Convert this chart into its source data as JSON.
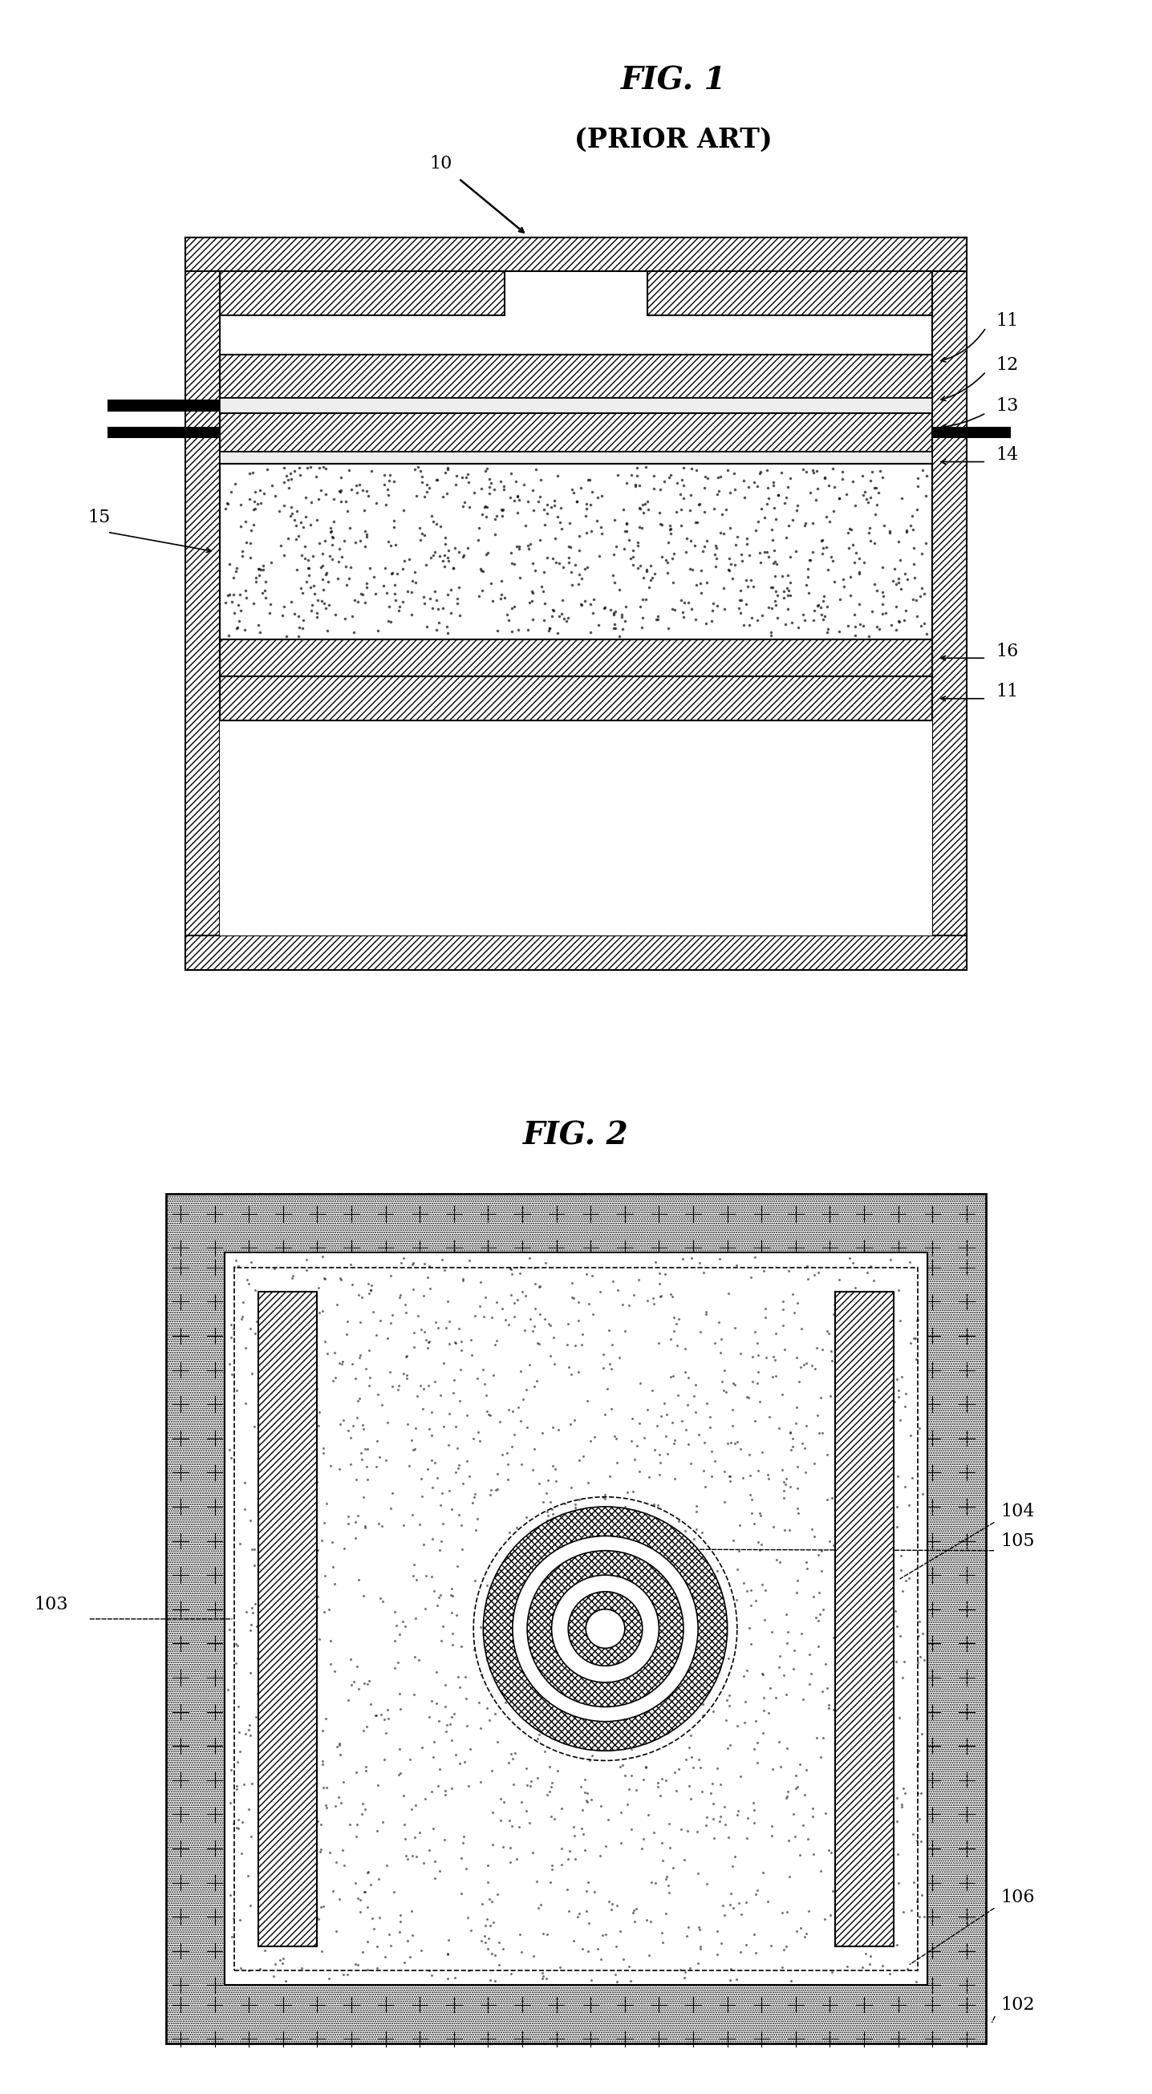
{
  "fig1_title": "FIG. 1",
  "fig1_subtitle": "(PRIOR ART)",
  "fig2_title": "FIG. 2",
  "bg_color": "#ffffff",
  "label_10": "10",
  "label_11": "11",
  "label_12": "12",
  "label_13": "13",
  "label_14": "14",
  "label_15": "15",
  "label_16": "16",
  "label_102": "102",
  "label_103": "103",
  "label_104": "104",
  "label_105": "105",
  "label_106": "106"
}
